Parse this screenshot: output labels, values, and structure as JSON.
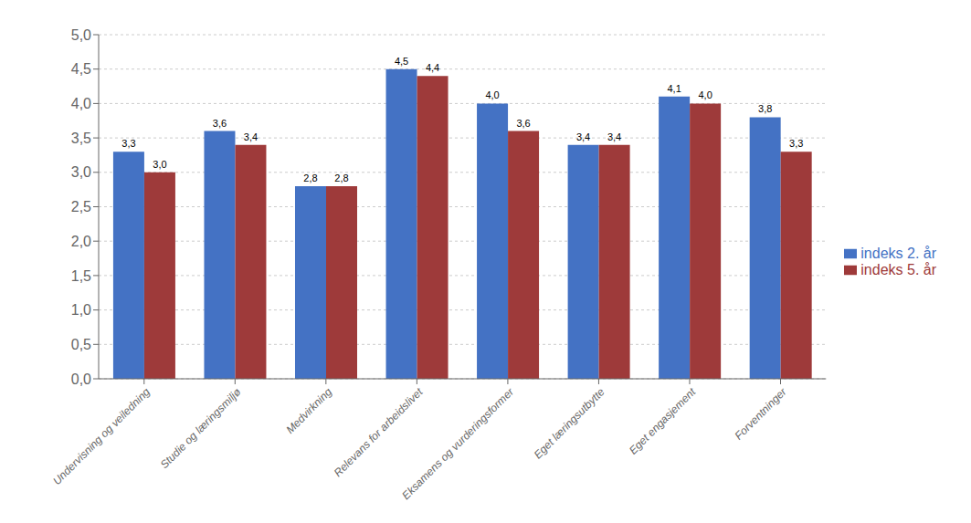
{
  "chart_data": {
    "type": "bar",
    "categories": [
      "Undervisning og veiledning",
      "Studie og læringsmiljø",
      "Medvirkning",
      "Relevans for arbeidslivet",
      "Eksamens og vurderingsformer",
      "Eget læringsutbytte",
      "Eget engasjement",
      "Forventninger"
    ],
    "series": [
      {
        "name": "indeks 2. år",
        "color": "#4472C4",
        "values": [
          3.3,
          3.6,
          2.8,
          4.5,
          4.0,
          3.4,
          4.1,
          3.8
        ],
        "value_labels": [
          "3,3",
          "3,6",
          "2,8",
          "4,5",
          "4,0",
          "3,4",
          "4,1",
          "3,8"
        ]
      },
      {
        "name": "indeks 5. år",
        "color": "#9E3A3A",
        "values": [
          3.0,
          3.4,
          2.8,
          4.4,
          3.6,
          3.4,
          4.0,
          3.3
        ],
        "value_labels": [
          "3,0",
          "3,4",
          "2,8",
          "4,4",
          "3,6",
          "3,4",
          "4,0",
          "3,3"
        ]
      }
    ],
    "ylim": [
      0,
      5.0
    ],
    "yticks": [
      {
        "value": 0.0,
        "label": "0,0"
      },
      {
        "value": 0.5,
        "label": "0,5"
      },
      {
        "value": 1.0,
        "label": "1,0"
      },
      {
        "value": 1.5,
        "label": "1,5"
      },
      {
        "value": 2.0,
        "label": "2,0"
      },
      {
        "value": 2.5,
        "label": "2,5"
      },
      {
        "value": 3.0,
        "label": "3,0"
      },
      {
        "value": 3.5,
        "label": "3,5"
      },
      {
        "value": 4.0,
        "label": "4,0"
      },
      {
        "value": 4.5,
        "label": "4,5"
      },
      {
        "value": 5.0,
        "label": "5,0"
      }
    ],
    "grid": true,
    "legend": "right",
    "data_labels": true
  }
}
